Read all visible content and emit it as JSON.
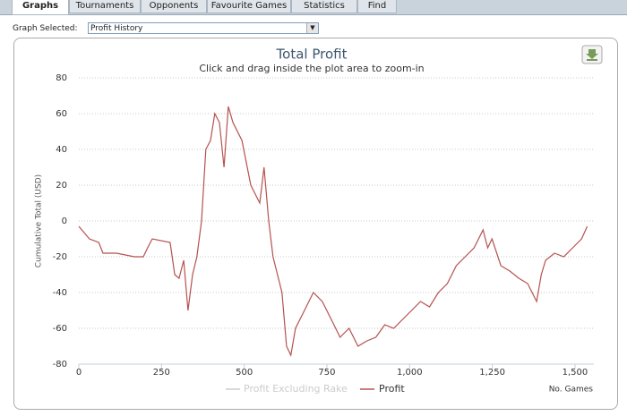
{
  "tabs": [
    "Graphs",
    "Tournaments",
    "Opponents",
    "Favourite Games",
    "Statistics",
    "Find"
  ],
  "graph_selector": {
    "label": "Graph Selected:",
    "value": "Profit History"
  },
  "chart_data": {
    "type": "line",
    "title": "Total Profit",
    "subtitle": "Click and drag inside the plot area to zoom-in",
    "y_label": "Cumulative Total (USD)",
    "x_label": "No. Games",
    "x": [
      0,
      32,
      60,
      73,
      114,
      168,
      195,
      208,
      222,
      276,
      290,
      303,
      317,
      330,
      344,
      357,
      371,
      384,
      398,
      411,
      425,
      439,
      452,
      466,
      493,
      520,
      547,
      560,
      574,
      587,
      614,
      628,
      641,
      655,
      682,
      709,
      736,
      763,
      790,
      817,
      844,
      871,
      898,
      925,
      952,
      979,
      1006,
      1033,
      1060,
      1087,
      1114,
      1141,
      1168,
      1195,
      1222,
      1236,
      1249,
      1276,
      1303,
      1330,
      1357,
      1384,
      1398,
      1411,
      1438,
      1466,
      1493,
      1520,
      1537
    ],
    "series": [
      {
        "name": "Profit",
        "color": "#b5524f",
        "values": [
          -3,
          -10,
          -12,
          -18,
          -18,
          -20,
          -20,
          -15,
          -10,
          -12,
          -30,
          -32,
          -22,
          -50,
          -30,
          -20,
          0,
          40,
          45,
          60,
          55,
          30,
          64,
          55,
          45,
          20,
          10,
          30,
          0,
          -20,
          -40,
          -70,
          -75,
          -60,
          -50,
          -40,
          -45,
          -55,
          -65,
          -60,
          -70,
          -67,
          -65,
          -58,
          -60,
          -55,
          -50,
          -45,
          -48,
          -40,
          -35,
          -25,
          -20,
          -15,
          -5,
          -15,
          -10,
          -25,
          -28,
          -32,
          -35,
          -45,
          -30,
          -22,
          -18,
          -20,
          -15,
          -10,
          -3
        ]
      }
    ],
    "hidden_series": {
      "name": "Profit Excluding Rake",
      "color": "#cccccc"
    },
    "xlim": [
      0,
      1557
    ],
    "ylim": [
      -80,
      80
    ],
    "xticks": [
      0,
      250,
      500,
      750,
      {
        "value": 1000,
        "label": "1,000"
      },
      {
        "value": 1250,
        "label": "1,250"
      },
      {
        "value": 1500,
        "label": "1,500"
      }
    ],
    "yticks": [
      -80,
      -60,
      -40,
      -20,
      0,
      20,
      40,
      60,
      80
    ],
    "grid": true
  }
}
